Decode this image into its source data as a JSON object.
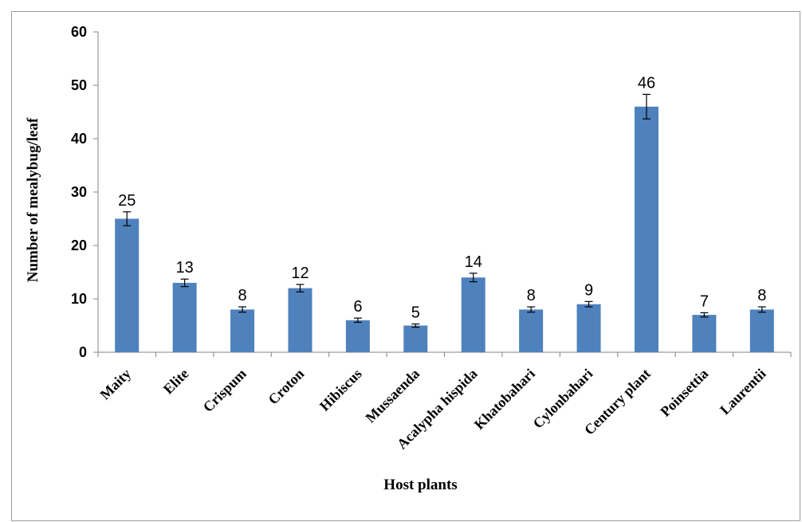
{
  "chart_data": {
    "type": "bar",
    "title": "",
    "xlabel": "Host plants",
    "ylabel": "Number of mealybug/leaf",
    "ylim": [
      0,
      60
    ],
    "yticks": [
      0,
      10,
      20,
      30,
      40,
      50,
      60
    ],
    "categories": [
      "Maity",
      "Elite",
      "Crispum",
      "Croton",
      "Hibiscus",
      "Mussaenda",
      "Acalypha hispida",
      "Khatobahari",
      "Cylonbahari",
      "Century plant",
      "Poinsettia",
      "Laurentii"
    ],
    "values": [
      25,
      13,
      8,
      12,
      6,
      5,
      14,
      8,
      9,
      46,
      7,
      8
    ],
    "error": [
      1.3,
      0.7,
      0.5,
      0.7,
      0.4,
      0.3,
      0.8,
      0.5,
      0.5,
      2.3,
      0.4,
      0.5
    ],
    "data_labels": [
      "25",
      "13",
      "8",
      "12",
      "6",
      "5",
      "14",
      "8",
      "9",
      "46",
      "7",
      "8"
    ],
    "bar_color": "#4f81bd",
    "grid": false,
    "legend": "none"
  }
}
